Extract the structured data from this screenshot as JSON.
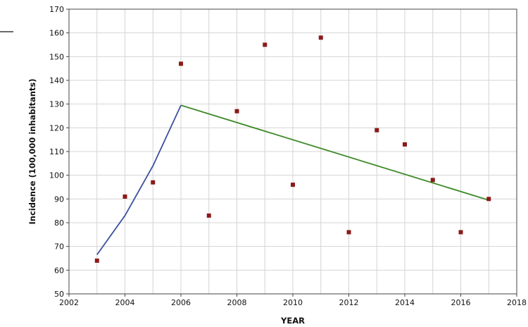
{
  "chart_data": {
    "type": "scatter",
    "xlabel": "YEAR",
    "ylabel": "Incidence (100,000 inhabitants)",
    "xlim": [
      2002,
      2018
    ],
    "ylim": [
      50,
      170
    ],
    "x_ticks": [
      2002,
      2004,
      2006,
      2008,
      2010,
      2012,
      2014,
      2016,
      2018
    ],
    "y_ticks": [
      50,
      60,
      70,
      80,
      90,
      100,
      110,
      120,
      130,
      140,
      150,
      160,
      170
    ],
    "x_minor_grid_step": 1,
    "grid": true,
    "points": {
      "color": "#8b1a1a",
      "x": [
        2003,
        2004,
        2005,
        2006,
        2007,
        2008,
        2009,
        2010,
        2011,
        2012,
        2013,
        2014,
        2015,
        2016,
        2017
      ],
      "y": [
        64,
        91,
        97,
        147,
        83,
        127,
        155,
        96,
        158,
        76,
        119,
        113,
        98,
        76,
        90
      ]
    },
    "trend_segments": [
      {
        "color": "#3b4fa0",
        "x": [
          2003,
          2004,
          2005,
          2006
        ],
        "y": [
          66.5,
          83,
          104,
          129.5
        ]
      },
      {
        "color": "#3f8a2a",
        "x": [
          2006,
          2017
        ],
        "y": [
          129.5,
          89.5
        ]
      }
    ]
  }
}
